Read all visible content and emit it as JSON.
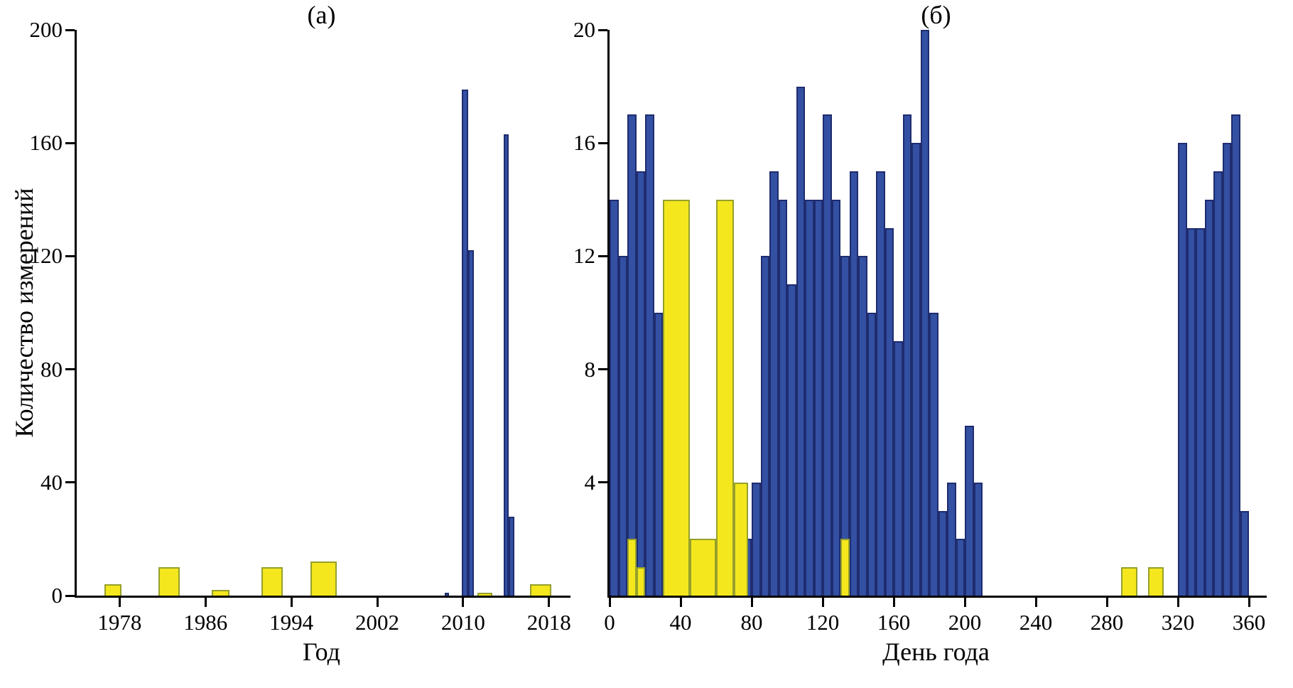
{
  "colors": {
    "blue_fill": "#3350a3",
    "blue_edge": "#1f2c6e",
    "yellow_fill": "#f4e71e",
    "yellow_edge": "#96a02b",
    "axis": "#000000"
  },
  "chart_data": [
    {
      "type": "bar",
      "panel": "a",
      "title": "(а)",
      "xlabel": "Год",
      "ylabel": "Количество измерений",
      "xlim": [
        1974,
        2020
      ],
      "ylim": [
        0,
        200
      ],
      "x_ticks": [
        1978,
        1986,
        1994,
        2002,
        2010,
        2018
      ],
      "y_ticks": [
        0,
        40,
        80,
        120,
        160,
        200
      ],
      "legend": "off",
      "grid": "off",
      "series": [
        {
          "name": "yellow-measurements-by-year",
          "color": "yellow",
          "bars": [
            {
              "x": 1976.6,
              "w": 1.6,
              "h": 4
            },
            {
              "x": 1981.6,
              "w": 2.0,
              "h": 10
            },
            {
              "x": 1986.6,
              "w": 1.6,
              "h": 2
            },
            {
              "x": 1991.2,
              "w": 2.0,
              "h": 10
            },
            {
              "x": 1995.8,
              "w": 2.4,
              "h": 12
            },
            {
              "x": 2011.3,
              "w": 1.4,
              "h": 1
            },
            {
              "x": 2016.2,
              "w": 2.0,
              "h": 4
            }
          ]
        },
        {
          "name": "blue-measurements-by-year",
          "color": "blue",
          "bars": [
            {
              "x": 2008.3,
              "w": 0.4,
              "h": 1
            },
            {
              "x": 2009.9,
              "w": 0.55,
              "h": 179
            },
            {
              "x": 2010.45,
              "w": 0.55,
              "h": 122
            },
            {
              "x": 2013.75,
              "w": 0.5,
              "h": 163
            },
            {
              "x": 2014.25,
              "w": 0.5,
              "h": 28
            }
          ]
        }
      ]
    },
    {
      "type": "bar",
      "panel": "b",
      "title": "(б)",
      "xlabel": "День года",
      "ylabel": "",
      "xlim": [
        0,
        370
      ],
      "ylim": [
        0,
        20
      ],
      "x_ticks": [
        0,
        40,
        80,
        120,
        160,
        200,
        240,
        280,
        320,
        360
      ],
      "y_ticks": [
        4,
        8,
        12,
        16,
        20
      ],
      "legend": "off",
      "grid": "off",
      "series": [
        {
          "name": "blue-measurements-by-day",
          "color": "blue",
          "bars": [
            {
              "x": 0,
              "w": 5,
              "h": 14
            },
            {
              "x": 5,
              "w": 5,
              "h": 12
            },
            {
              "x": 10,
              "w": 5,
              "h": 17
            },
            {
              "x": 15,
              "w": 5,
              "h": 15
            },
            {
              "x": 20,
              "w": 5,
              "h": 17
            },
            {
              "x": 25,
              "w": 5,
              "h": 10
            },
            {
              "x": 75,
              "w": 5,
              "h": 2
            },
            {
              "x": 80,
              "w": 5,
              "h": 4
            },
            {
              "x": 85,
              "w": 5,
              "h": 12
            },
            {
              "x": 90,
              "w": 5,
              "h": 15
            },
            {
              "x": 95,
              "w": 5,
              "h": 14
            },
            {
              "x": 100,
              "w": 5,
              "h": 11
            },
            {
              "x": 105,
              "w": 5,
              "h": 18
            },
            {
              "x": 110,
              "w": 5,
              "h": 14
            },
            {
              "x": 115,
              "w": 5,
              "h": 14
            },
            {
              "x": 120,
              "w": 5,
              "h": 17
            },
            {
              "x": 125,
              "w": 5,
              "h": 14
            },
            {
              "x": 130,
              "w": 5,
              "h": 12
            },
            {
              "x": 135,
              "w": 5,
              "h": 15
            },
            {
              "x": 140,
              "w": 5,
              "h": 12
            },
            {
              "x": 145,
              "w": 5,
              "h": 10
            },
            {
              "x": 150,
              "w": 5,
              "h": 15
            },
            {
              "x": 155,
              "w": 5,
              "h": 13
            },
            {
              "x": 160,
              "w": 5,
              "h": 9
            },
            {
              "x": 165,
              "w": 5,
              "h": 17
            },
            {
              "x": 170,
              "w": 5,
              "h": 16
            },
            {
              "x": 175,
              "w": 5,
              "h": 20
            },
            {
              "x": 180,
              "w": 5,
              "h": 10
            },
            {
              "x": 185,
              "w": 5,
              "h": 3
            },
            {
              "x": 190,
              "w": 5,
              "h": 4
            },
            {
              "x": 195,
              "w": 5,
              "h": 2
            },
            {
              "x": 200,
              "w": 5,
              "h": 6
            },
            {
              "x": 205,
              "w": 5,
              "h": 4
            },
            {
              "x": 320,
              "w": 5,
              "h": 16
            },
            {
              "x": 325,
              "w": 5,
              "h": 13
            },
            {
              "x": 330,
              "w": 5,
              "h": 13
            },
            {
              "x": 335,
              "w": 5,
              "h": 14
            },
            {
              "x": 340,
              "w": 5,
              "h": 15
            },
            {
              "x": 345,
              "w": 5,
              "h": 16
            },
            {
              "x": 350,
              "w": 5,
              "h": 17
            },
            {
              "x": 355,
              "w": 5,
              "h": 3
            }
          ]
        },
        {
          "name": "yellow-measurements-by-day",
          "color": "yellow",
          "bars": [
            {
              "x": 10,
              "w": 5,
              "h": 2
            },
            {
              "x": 15,
              "w": 5,
              "h": 1
            },
            {
              "x": 30,
              "w": 15,
              "h": 14
            },
            {
              "x": 45,
              "w": 15,
              "h": 2
            },
            {
              "x": 60,
              "w": 10,
              "h": 14
            },
            {
              "x": 70,
              "w": 8,
              "h": 4
            },
            {
              "x": 130,
              "w": 5,
              "h": 2
            },
            {
              "x": 288,
              "w": 9,
              "h": 1
            },
            {
              "x": 303,
              "w": 9,
              "h": 1
            }
          ]
        }
      ]
    }
  ]
}
